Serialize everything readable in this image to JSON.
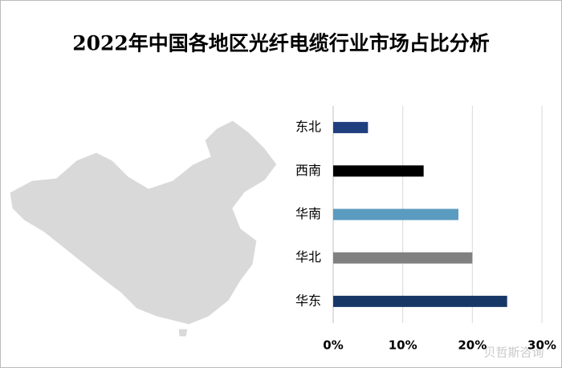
{
  "chart_data": {
    "type": "barh",
    "title": "2022年中国各地区光纤电缆行业市场占比分析",
    "categories": [
      "东北",
      "西南",
      "华南",
      "华北",
      "华东"
    ],
    "values": [
      5,
      13,
      18,
      20,
      25
    ],
    "colors": [
      "#1f3f7f",
      "#000000",
      "#5b9bc0",
      "#808080",
      "#173867"
    ],
    "xlim": [
      0,
      30
    ],
    "xticks": [
      {
        "value": 0,
        "label": "0%"
      },
      {
        "value": 10,
        "label": "10%"
      },
      {
        "value": 20,
        "label": "20%"
      },
      {
        "value": 30,
        "label": "30%"
      }
    ],
    "grid": true,
    "watermark": "贝哲斯咨询"
  }
}
